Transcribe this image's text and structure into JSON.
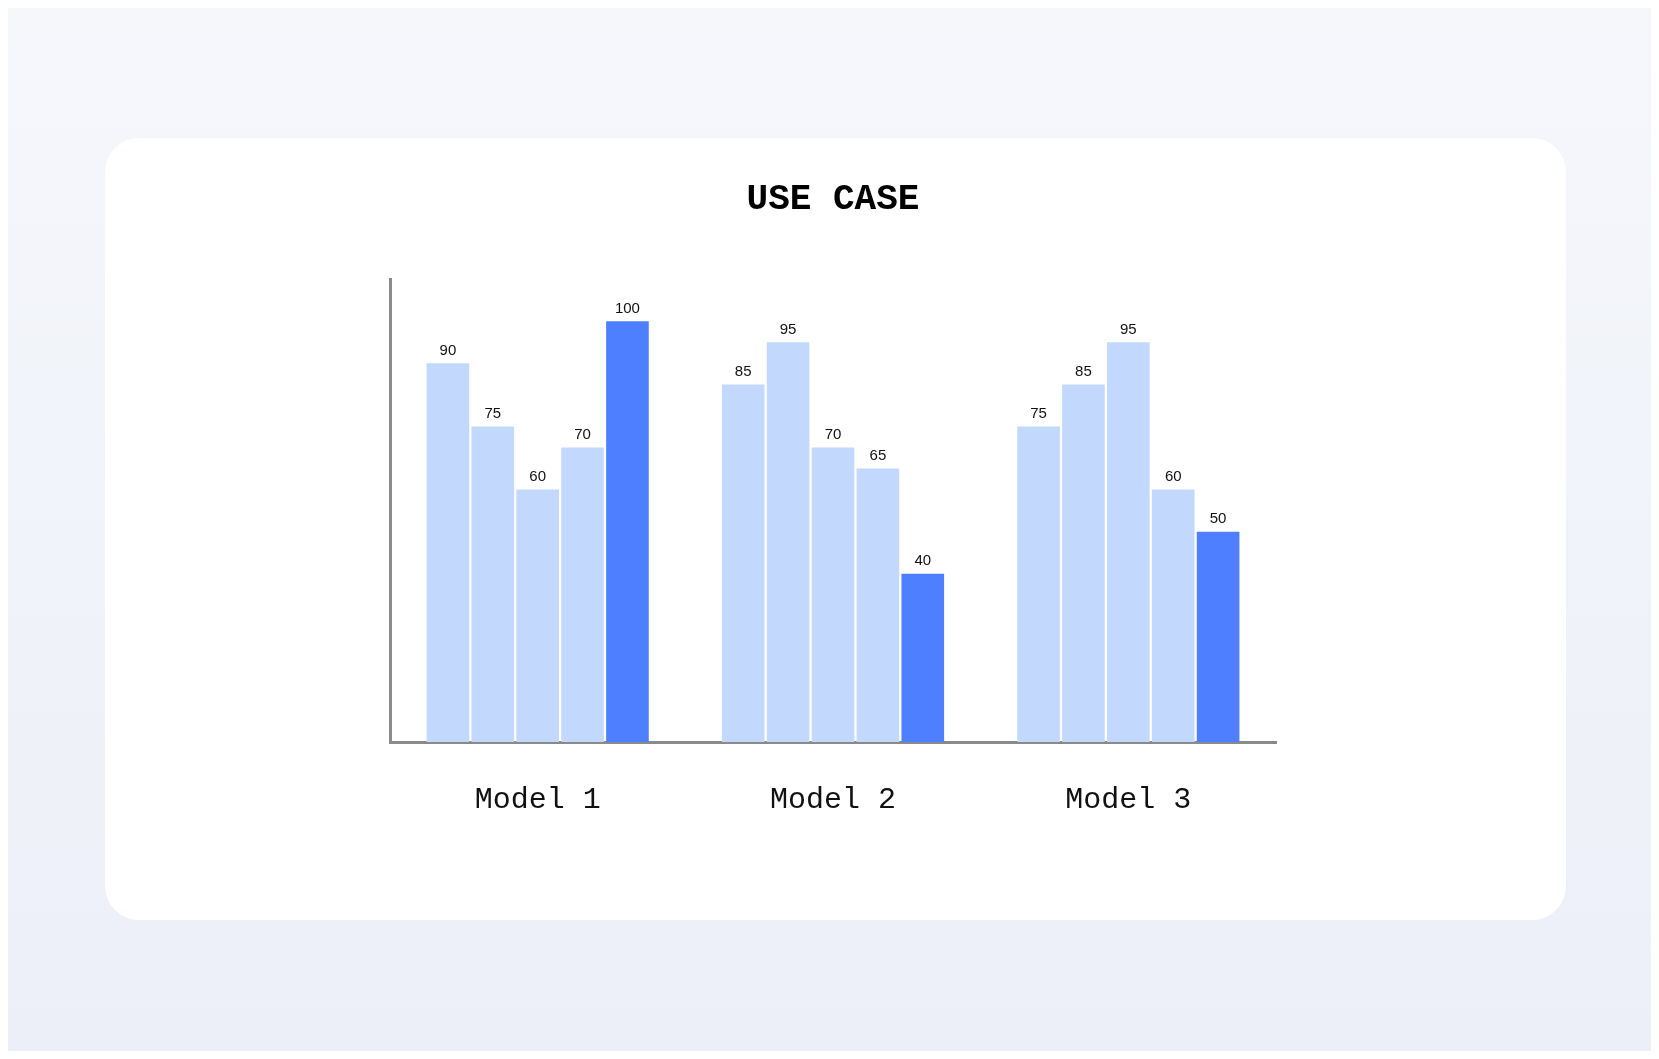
{
  "chart_data": {
    "type": "bar",
    "title": "USE CASE",
    "categories": [
      "Model 1",
      "Model 2",
      "Model 3"
    ],
    "series": [
      {
        "color": "#c2d9fd",
        "values": [
          90,
          85,
          75
        ]
      },
      {
        "color": "#c2d9fd",
        "values": [
          75,
          95,
          85
        ]
      },
      {
        "color": "#c2d9fd",
        "values": [
          60,
          70,
          95
        ]
      },
      {
        "color": "#c2d9fd",
        "values": [
          70,
          65,
          60
        ]
      },
      {
        "color": "#4d7ffe",
        "values": [
          100,
          40,
          50
        ]
      }
    ],
    "ylim": [
      0,
      110
    ],
    "tick_labels": "x",
    "data_labels": true,
    "grid": false,
    "legend": false
  }
}
